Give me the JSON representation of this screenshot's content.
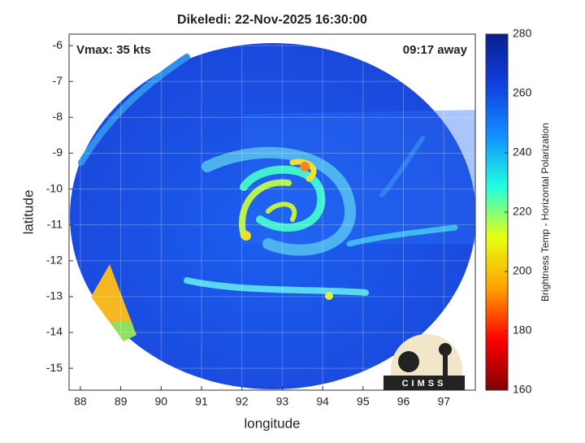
{
  "chart_data": {
    "type": "image",
    "title": "Dikeledi: 22-Nov-2025 16:30:00",
    "annotations": [
      "Vmax: 35 kts",
      "09:17 away"
    ],
    "x_label": "longitude",
    "y_label": "latitude",
    "xlim": [
      87.72,
      97.78
    ],
    "xticks": [
      88,
      89,
      90,
      91,
      92,
      93,
      94,
      95,
      96,
      97
    ],
    "ylim": [
      -15.61,
      -5.68
    ],
    "yticks": [
      -15,
      -14,
      -13,
      -12,
      -11,
      -10,
      -9,
      -8,
      -7,
      -6
    ],
    "grid": true,
    "colorbar": {
      "label": "Brightness Temp - Horizontal Polarization",
      "lim": [
        160,
        280
      ],
      "ticks": [
        160,
        180,
        200,
        220,
        240,
        260,
        280
      ],
      "colors": [
        "#800000",
        "#ff0000",
        "#ffa000",
        "#e8ff10",
        "#20ffe0",
        "#1090ff",
        "#1040e0",
        "#0a1f90"
      ]
    },
    "logo": "CIMSS"
  }
}
